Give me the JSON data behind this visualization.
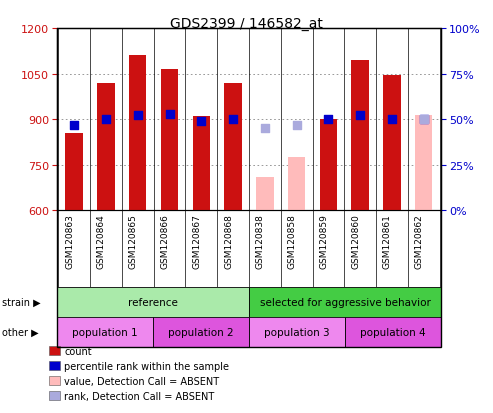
{
  "title": "GDS2399 / 146582_at",
  "samples": [
    "GSM120863",
    "GSM120864",
    "GSM120865",
    "GSM120866",
    "GSM120867",
    "GSM120868",
    "GSM120838",
    "GSM120858",
    "GSM120859",
    "GSM120860",
    "GSM120861",
    "GSM120862"
  ],
  "ylim_left": [
    600,
    1200
  ],
  "ylim_right": [
    0,
    100
  ],
  "yticks_left": [
    600,
    750,
    900,
    1050,
    1200
  ],
  "yticks_right": [
    0,
    25,
    50,
    75,
    100
  ],
  "bar_values": [
    855,
    1020,
    1110,
    1065,
    910,
    1020,
    null,
    null,
    900,
    1095,
    1045,
    null
  ],
  "bar_absent_values": [
    null,
    null,
    null,
    null,
    null,
    null,
    710,
    775,
    null,
    null,
    null,
    915
  ],
  "bar_color": "#cc1111",
  "bar_absent_color": "#ffbbbb",
  "rank_values": [
    47,
    50,
    52,
    53,
    49,
    50,
    null,
    null,
    50,
    52,
    50,
    50
  ],
  "rank_absent_values": [
    null,
    null,
    null,
    null,
    null,
    null,
    45,
    47,
    null,
    null,
    null,
    50
  ],
  "rank_color": "#0000cc",
  "rank_absent_color": "#aaaadd",
  "bar_width": 0.55,
  "strain_labels": [
    {
      "label": "reference",
      "start": 0,
      "end": 6,
      "color": "#aaeaaa"
    },
    {
      "label": "selected for aggressive behavior",
      "start": 6,
      "end": 12,
      "color": "#44cc44"
    }
  ],
  "other_labels": [
    {
      "label": "population 1",
      "start": 0,
      "end": 3,
      "color": "#ee88ee"
    },
    {
      "label": "population 2",
      "start": 3,
      "end": 6,
      "color": "#dd55dd"
    },
    {
      "label": "population 3",
      "start": 6,
      "end": 9,
      "color": "#ee88ee"
    },
    {
      "label": "population 4",
      "start": 9,
      "end": 12,
      "color": "#dd55dd"
    }
  ],
  "legend_items": [
    {
      "label": "count",
      "color": "#cc1111"
    },
    {
      "label": "percentile rank within the sample",
      "color": "#0000cc"
    },
    {
      "label": "value, Detection Call = ABSENT",
      "color": "#ffbbbb"
    },
    {
      "label": "rank, Detection Call = ABSENT",
      "color": "#aaaadd"
    }
  ],
  "background_color": "#ffffff",
  "grid_color": "#888888",
  "tick_color_left": "#cc1111",
  "tick_color_right": "#0000cc",
  "xtick_bg": "#cccccc",
  "border_color": "#000000"
}
